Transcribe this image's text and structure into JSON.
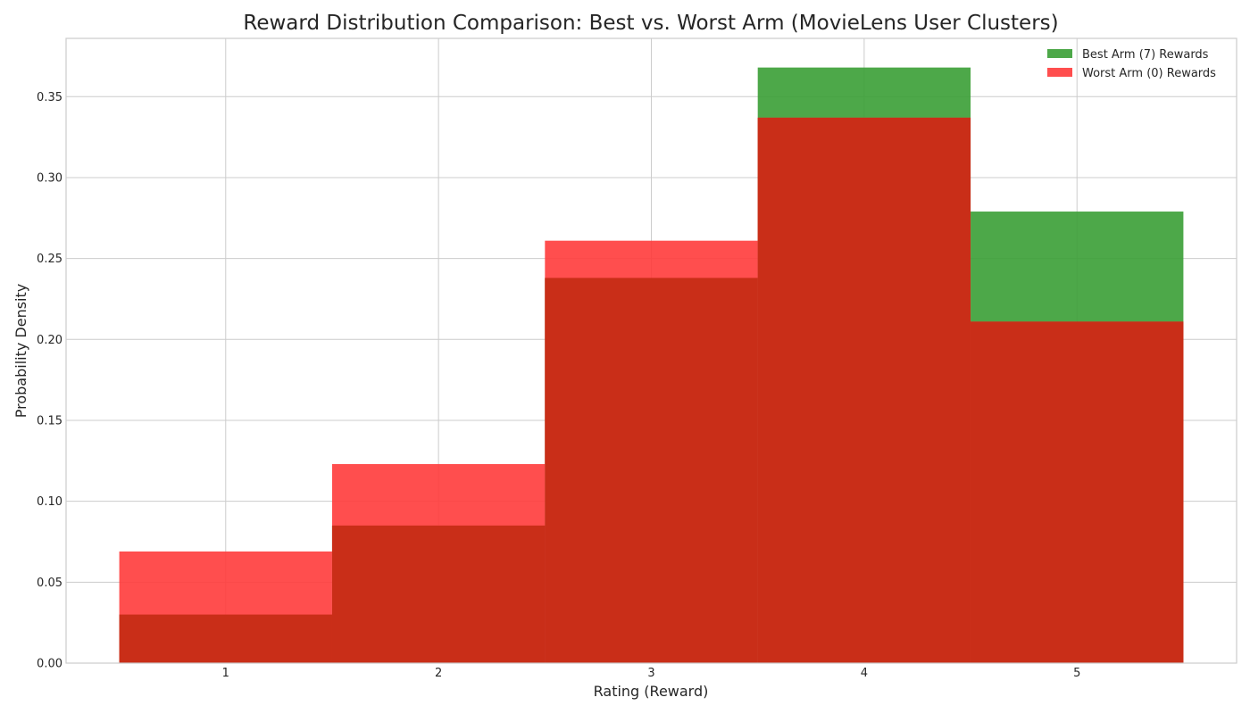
{
  "chart_data": {
    "type": "bar",
    "title": "Reward Distribution Comparison: Best vs. Worst Arm (MovieLens User Clusters)",
    "xlabel": "Rating (Reward)",
    "ylabel": "Probability Density",
    "categories": [
      1,
      2,
      3,
      4,
      5
    ],
    "xlim": [
      0.25,
      5.75
    ],
    "ylim": [
      0,
      0.386
    ],
    "yticks": [
      0.0,
      0.05,
      0.1,
      0.15,
      0.2,
      0.25,
      0.3,
      0.35
    ],
    "ytick_labels": [
      "0.00",
      "0.05",
      "0.10",
      "0.15",
      "0.20",
      "0.25",
      "0.30",
      "0.35"
    ],
    "xtick_labels": [
      "1",
      "2",
      "3",
      "4",
      "5"
    ],
    "grid": true,
    "legend_position": "top-right",
    "series": [
      {
        "name": "Best Arm (7) Rewards",
        "color": "#3a9e35",
        "opacity": 0.9,
        "values": [
          0.03,
          0.085,
          0.238,
          0.368,
          0.279
        ]
      },
      {
        "name": "Worst Arm (0) Rewards",
        "color": "#ff3b3b",
        "opacity": 0.9,
        "values": [
          0.069,
          0.123,
          0.261,
          0.337,
          0.211
        ]
      }
    ],
    "overlap_color": "#c92e18",
    "axis_color": "#cccccc",
    "grid_color": "#cccccc"
  }
}
